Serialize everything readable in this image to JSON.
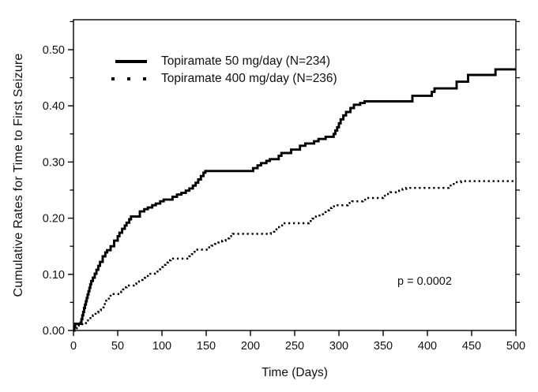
{
  "chart_data": {
    "type": "line",
    "subtype": "step",
    "title": "",
    "xlabel": "Time (Days)",
    "ylabel": "Cumulative Rates for Time to First Seizure",
    "xlim": [
      0,
      500
    ],
    "ylim": [
      0,
      0.55
    ],
    "grid": "off",
    "legend_position": "inside-top-left",
    "annotation": "p = 0.0002",
    "x_ticks": [
      0,
      50,
      100,
      150,
      200,
      250,
      300,
      350,
      400,
      450,
      500
    ],
    "x_tick_labels": [
      "0",
      "50",
      "100",
      "150",
      "200",
      "250",
      "300",
      "350",
      "400",
      "450",
      "500"
    ],
    "y_ticks_major": [
      0,
      0.1,
      0.2,
      0.3,
      0.4,
      0.5
    ],
    "y_tick_labels": [
      "0.00",
      "0.10",
      "0.20",
      "0.30",
      "0.40",
      "0.50"
    ],
    "y_ticks_minor": [
      0.05,
      0.15,
      0.25,
      0.35,
      0.45,
      0.55
    ],
    "line_color": "#000000",
    "series": [
      {
        "name": "Topiramate 50 mg/day (N=234)",
        "style": "solid",
        "steps": [
          [
            0,
            0
          ],
          [
            1,
            0.006
          ],
          [
            2,
            0.012
          ],
          [
            8,
            0.014
          ],
          [
            9,
            0.02
          ],
          [
            10,
            0.027
          ],
          [
            11,
            0.033
          ],
          [
            12,
            0.04
          ],
          [
            13,
            0.046
          ],
          [
            14,
            0.052
          ],
          [
            15,
            0.058
          ],
          [
            16,
            0.064
          ],
          [
            17,
            0.07
          ],
          [
            18,
            0.076
          ],
          [
            19,
            0.082
          ],
          [
            20,
            0.088
          ],
          [
            22,
            0.094
          ],
          [
            24,
            0.101
          ],
          [
            26,
            0.108
          ],
          [
            28,
            0.115
          ],
          [
            30,
            0.122
          ],
          [
            33,
            0.132
          ],
          [
            36,
            0.139
          ],
          [
            38,
            0.143
          ],
          [
            42,
            0.15
          ],
          [
            46,
            0.16
          ],
          [
            50,
            0.168
          ],
          [
            52,
            0.174
          ],
          [
            55,
            0.181
          ],
          [
            58,
            0.187
          ],
          [
            60,
            0.192
          ],
          [
            63,
            0.198
          ],
          [
            65,
            0.203
          ],
          [
            75,
            0.212
          ],
          [
            80,
            0.216
          ],
          [
            84,
            0.219
          ],
          [
            89,
            0.223
          ],
          [
            93,
            0.226
          ],
          [
            98,
            0.23
          ],
          [
            102,
            0.233
          ],
          [
            112,
            0.238
          ],
          [
            117,
            0.242
          ],
          [
            122,
            0.245
          ],
          [
            127,
            0.249
          ],
          [
            131,
            0.253
          ],
          [
            135,
            0.258
          ],
          [
            138,
            0.263
          ],
          [
            141,
            0.269
          ],
          [
            144,
            0.275
          ],
          [
            147,
            0.281
          ],
          [
            149,
            0.284
          ],
          [
            203,
            0.289
          ],
          [
            208,
            0.294
          ],
          [
            212,
            0.298
          ],
          [
            218,
            0.302
          ],
          [
            222,
            0.305
          ],
          [
            232,
            0.311
          ],
          [
            235,
            0.316
          ],
          [
            246,
            0.322
          ],
          [
            256,
            0.329
          ],
          [
            262,
            0.333
          ],
          [
            272,
            0.337
          ],
          [
            277,
            0.341
          ],
          [
            285,
            0.345
          ],
          [
            294,
            0.35
          ],
          [
            296,
            0.356
          ],
          [
            298,
            0.362
          ],
          [
            300,
            0.369
          ],
          [
            302,
            0.376
          ],
          [
            305,
            0.383
          ],
          [
            308,
            0.389
          ],
          [
            313,
            0.396
          ],
          [
            317,
            0.402
          ],
          [
            324,
            0.405
          ],
          [
            329,
            0.408
          ],
          [
            383,
            0.418
          ],
          [
            405,
            0.425
          ],
          [
            408,
            0.431
          ],
          [
            433,
            0.443
          ],
          [
            446,
            0.455
          ],
          [
            477,
            0.465
          ],
          [
            500,
            0.465
          ]
        ]
      },
      {
        "name": "Topiramate 400 mg/day (N=236)",
        "style": "dotted",
        "steps": [
          [
            0,
            0
          ],
          [
            3,
            0.004
          ],
          [
            6,
            0.009
          ],
          [
            10,
            0.013
          ],
          [
            14,
            0.018
          ],
          [
            18,
            0.022
          ],
          [
            22,
            0.027
          ],
          [
            25,
            0.032
          ],
          [
            28,
            0.036
          ],
          [
            31,
            0.041
          ],
          [
            34,
            0.047
          ],
          [
            37,
            0.053
          ],
          [
            40,
            0.06
          ],
          [
            42,
            0.065
          ],
          [
            54,
            0.069
          ],
          [
            56,
            0.073
          ],
          [
            58,
            0.077
          ],
          [
            60,
            0.08
          ],
          [
            68,
            0.083
          ],
          [
            71,
            0.087
          ],
          [
            74,
            0.09
          ],
          [
            78,
            0.094
          ],
          [
            81,
            0.097
          ],
          [
            84,
            0.101
          ],
          [
            92,
            0.105
          ],
          [
            95,
            0.109
          ],
          [
            98,
            0.113
          ],
          [
            101,
            0.117
          ],
          [
            104,
            0.121
          ],
          [
            107,
            0.125
          ],
          [
            110,
            0.128
          ],
          [
            131,
            0.132
          ],
          [
            134,
            0.136
          ],
          [
            137,
            0.14
          ],
          [
            140,
            0.144
          ],
          [
            152,
            0.148
          ],
          [
            156,
            0.151
          ],
          [
            160,
            0.154
          ],
          [
            164,
            0.157
          ],
          [
            168,
            0.16
          ],
          [
            172,
            0.164
          ],
          [
            176,
            0.168
          ],
          [
            180,
            0.172
          ],
          [
            223,
            0.176
          ],
          [
            227,
            0.18
          ],
          [
            231,
            0.184
          ],
          [
            234,
            0.187
          ],
          [
            237,
            0.191
          ],
          [
            266,
            0.195
          ],
          [
            270,
            0.199
          ],
          [
            274,
            0.203
          ],
          [
            278,
            0.207
          ],
          [
            282,
            0.211
          ],
          [
            285,
            0.214
          ],
          [
            289,
            0.218
          ],
          [
            292,
            0.221
          ],
          [
            296,
            0.223
          ],
          [
            310,
            0.227
          ],
          [
            315,
            0.23
          ],
          [
            327,
            0.233
          ],
          [
            331,
            0.236
          ],
          [
            350,
            0.24
          ],
          [
            354,
            0.243
          ],
          [
            358,
            0.246
          ],
          [
            368,
            0.249
          ],
          [
            372,
            0.252
          ],
          [
            376,
            0.254
          ],
          [
            424,
            0.258
          ],
          [
            428,
            0.261
          ],
          [
            432,
            0.264
          ],
          [
            438,
            0.266
          ],
          [
            500,
            0.266
          ]
        ]
      }
    ]
  }
}
